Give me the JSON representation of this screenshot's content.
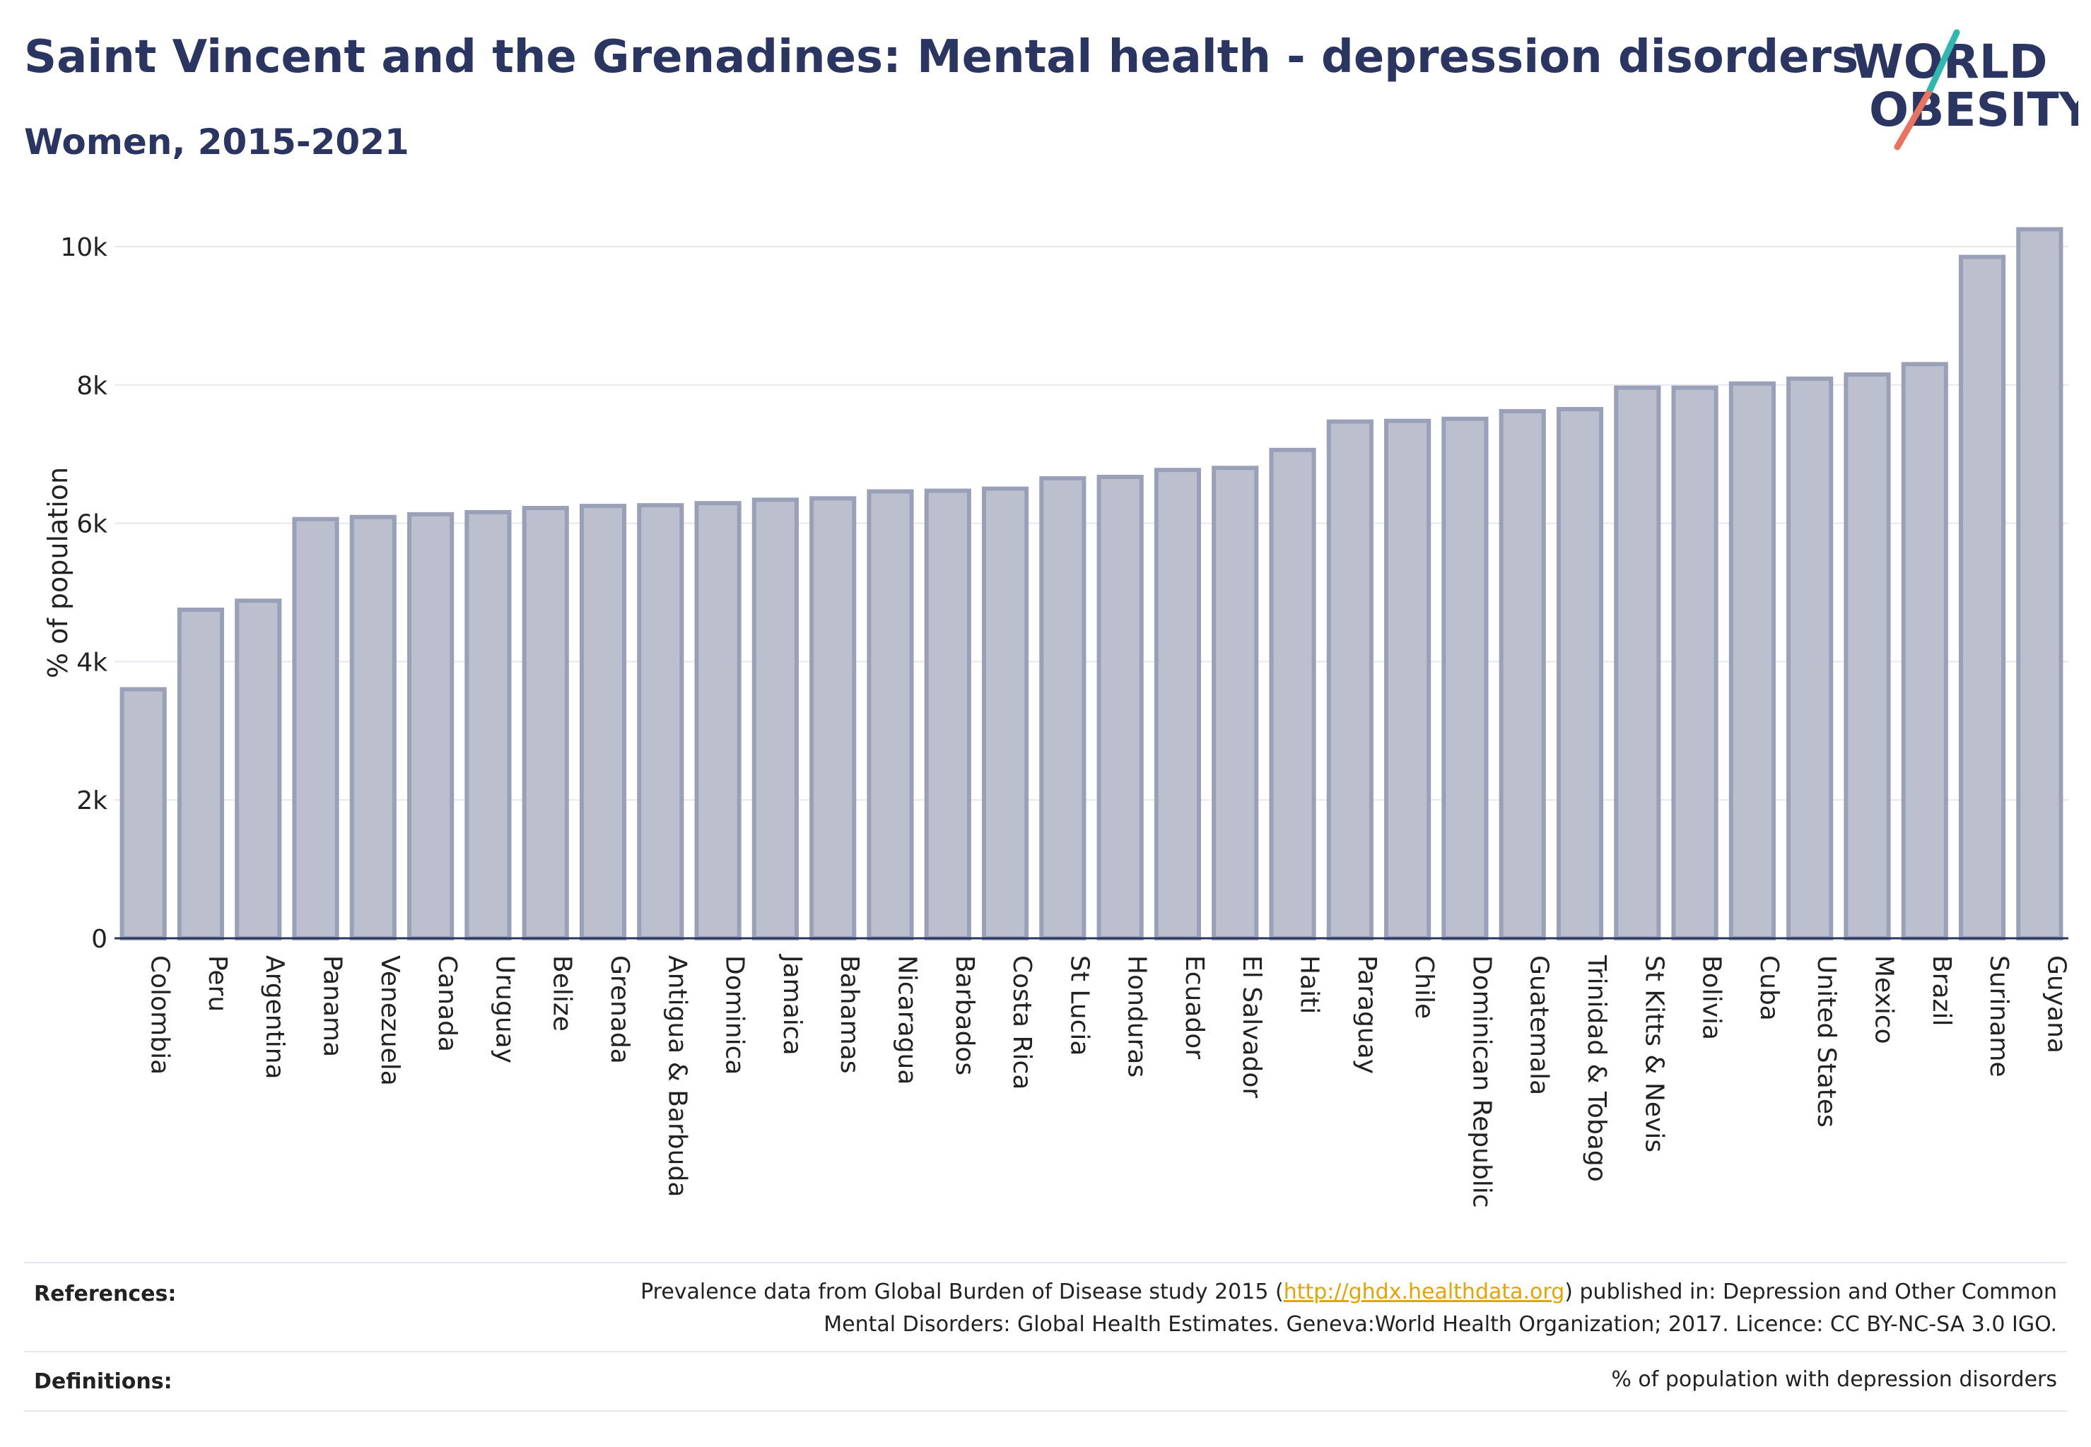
{
  "header": {
    "title": "Saint Vincent and the Grenadines: Mental health - depression disorders",
    "subtitle": "Women, 2015-2021"
  },
  "logo": {
    "line1": "WORLD",
    "line2": "OBESITY",
    "accent_teal": "#2fb7b0",
    "accent_coral": "#e8735f"
  },
  "colors": {
    "bar_fill": "#bcc0ce",
    "bar_stroke": "#9aa0b8",
    "text": "#2b3562",
    "grid": "#e6e8ee"
  },
  "chart_data": {
    "type": "bar",
    "title": "Saint Vincent and the Grenadines: Mental health - depression disorders",
    "subtitle": "Women, 2015-2021",
    "xlabel": "",
    "ylabel": "% of population",
    "ylim": [
      0,
      10500
    ],
    "yticks": [
      0,
      2000,
      4000,
      6000,
      8000,
      10000
    ],
    "ytick_labels": [
      "0",
      "2k",
      "4k",
      "6k",
      "8k",
      "10k"
    ],
    "grid": true,
    "categories": [
      "Colombia",
      "Peru",
      "Argentina",
      "Panama",
      "Venezuela",
      "Canada",
      "Uruguay",
      "Belize",
      "Grenada",
      "Antigua & Barbuda",
      "Dominica",
      "Jamaica",
      "Bahamas",
      "Nicaragua",
      "Barbados",
      "Costa Rica",
      "St Lucia",
      "Honduras",
      "Ecuador",
      "El Salvador",
      "Haiti",
      "Paraguay",
      "Chile",
      "Dominican Republic",
      "Guatemala",
      "Trinidad & Tobago",
      "St Kitts & Nevis",
      "Bolivia",
      "Cuba",
      "United States",
      "Mexico",
      "Brazil",
      "Suriname",
      "Guyana"
    ],
    "values": [
      3600,
      4750,
      4880,
      6060,
      6090,
      6130,
      6160,
      6220,
      6250,
      6260,
      6290,
      6340,
      6360,
      6460,
      6470,
      6500,
      6650,
      6670,
      6770,
      6800,
      7060,
      7470,
      7480,
      7510,
      7620,
      7650,
      7960,
      7960,
      8020,
      8090,
      8150,
      8300,
      9850,
      10250
    ]
  },
  "footer": {
    "references_label": "References:",
    "references_text_1": "Prevalence data from Global Burden of Disease study 2015 (",
    "references_link": "http://ghdx.healthdata.org",
    "references_text_2": ") published in: Depression and Other Common",
    "references_text_3": "Mental Disorders: Global Health Estimates. Geneva:World Health Organization; 2017. Licence: CC BY-NC-SA 3.0 IGO.",
    "definitions_label": "Definitions:",
    "definitions_text": "% of population with depression disorders"
  }
}
